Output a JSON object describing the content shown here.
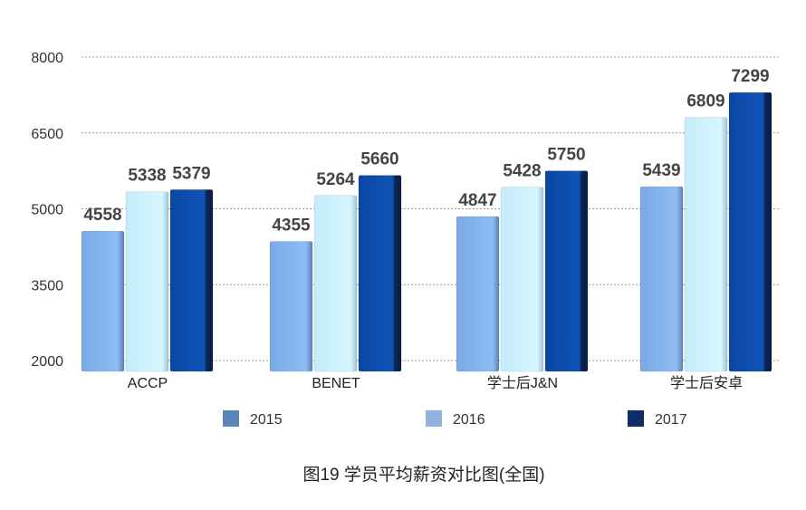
{
  "chart_data": {
    "type": "bar",
    "title": "图19  学员平均薪资对比图(全国)",
    "categories": [
      "ACCP",
      "BENET",
      "学士后J&N",
      "学士后安卓"
    ],
    "series": [
      {
        "name": "2015",
        "values": [
          4558,
          4355,
          4847,
          5439
        ],
        "color": "#5b84b8"
      },
      {
        "name": "2016",
        "values": [
          5338,
          5264,
          5428,
          6809
        ],
        "color": "#8fb3dc"
      },
      {
        "name": "2017",
        "values": [
          5379,
          5660,
          5750,
          7299
        ],
        "color": "#0e2d66"
      }
    ],
    "bar_fills": [
      "#86b6ee",
      "#cdf2ff",
      "#0c4aa6"
    ],
    "yticks": [
      "2000",
      "3500",
      "5000",
      "6500",
      "8000"
    ],
    "ylim": [
      2000,
      8000
    ],
    "grid": true,
    "legend_position": "bottom"
  }
}
